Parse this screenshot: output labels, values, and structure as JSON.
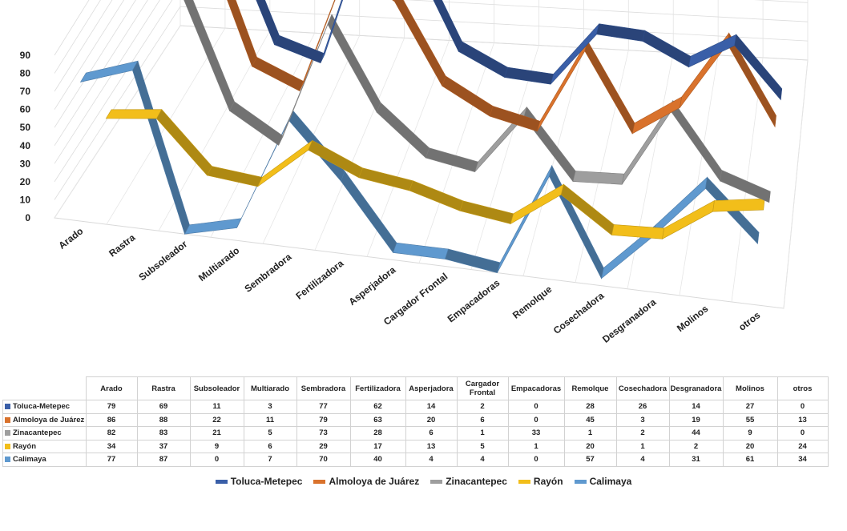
{
  "chart_data": {
    "type": "line",
    "style": "3d-ribbon",
    "categories": [
      "Arado",
      "Rastra",
      "Subsoleador",
      "Multiarado",
      "Sembradora",
      "Fertilizadora",
      "Asperjadora",
      "Cargador Frontal",
      "Empacadoras",
      "Remolque",
      "Cosechadora",
      "Desgranadora",
      "Molinos",
      "otros"
    ],
    "ylim": [
      0,
      90
    ],
    "yticks": [
      "0",
      "10",
      "20",
      "30",
      "40",
      "50",
      "60",
      "70",
      "80",
      "90"
    ],
    "series": [
      {
        "name": "Toluca-Metepec",
        "color": "#3a5fa8",
        "values": [
          79,
          69,
          11,
          3,
          77,
          62,
          14,
          2,
          0,
          28,
          26,
          14,
          27,
          0
        ]
      },
      {
        "name": "Almoloya de Juárez",
        "color": "#d9722c",
        "values": [
          86,
          88,
          22,
          11,
          79,
          63,
          20,
          6,
          0,
          45,
          3,
          19,
          55,
          13
        ]
      },
      {
        "name": "Zinacantepec",
        "color": "#9e9e9e",
        "values": [
          82,
          83,
          21,
          5,
          73,
          28,
          6,
          1,
          33,
          1,
          2,
          44,
          9,
          0
        ]
      },
      {
        "name": "Rayón",
        "color": "#f2be1a",
        "values": [
          34,
          37,
          9,
          6,
          29,
          17,
          13,
          5,
          1,
          20,
          1,
          2,
          20,
          24
        ]
      },
      {
        "name": "Calimaya",
        "color": "#5f99cf",
        "values": [
          77,
          87,
          0,
          7,
          70,
          40,
          4,
          4,
          0,
          57,
          4,
          31,
          61,
          34
        ]
      }
    ],
    "table_headers": [
      "Arado",
      "Rastra",
      "Subsoleador",
      "Multiarado",
      "Sembradora",
      "Fertilizadora",
      "Asperjadora",
      "Cargador Frontal",
      "Empacadoras",
      "Remolque",
      "Cosechadora",
      "Desgranadora",
      "Molinos",
      "otros"
    ]
  }
}
